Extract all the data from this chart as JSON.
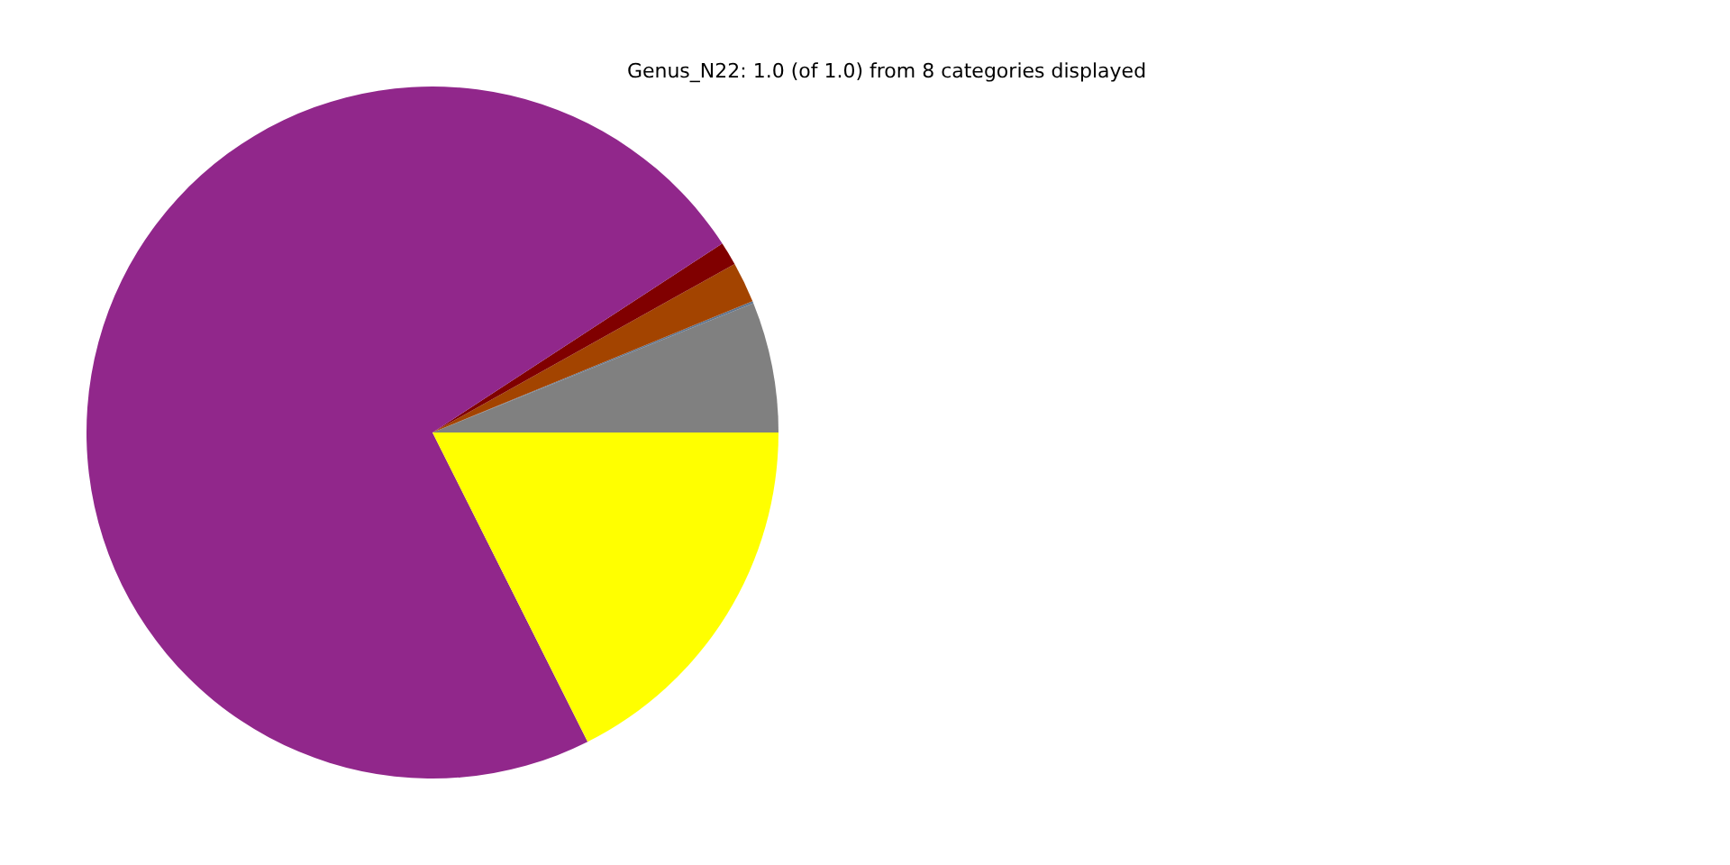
{
  "chart_data": {
    "type": "pie",
    "title": "Genus_N22: 1.0 (of 1.0) from 8 categories displayed",
    "categories": [
      null,
      null,
      null,
      null,
      null,
      null
    ],
    "values": [
      6.1,
      0.1,
      1.9,
      1.1,
      73.2,
      17.6
    ],
    "colors": [
      "#808080",
      "#5f7590",
      "#a34400",
      "#800000",
      "#91278b",
      "#ffff00"
    ]
  }
}
